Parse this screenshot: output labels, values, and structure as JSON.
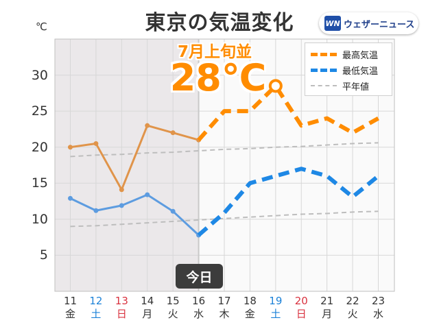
{
  "header": {
    "title": "東京の気温変化",
    "brand": "ウェザーニュース",
    "brand_mark": "WN"
  },
  "chart_data": {
    "type": "line",
    "unit_label": "℃",
    "ylim": [
      0,
      35
    ],
    "yticks": [
      5,
      10,
      15,
      20,
      25,
      30
    ],
    "grid": true,
    "categories": [
      "11",
      "12",
      "13",
      "14",
      "15",
      "16",
      "17",
      "18",
      "19",
      "20",
      "21",
      "22",
      "23"
    ],
    "weekdays": [
      "金",
      "土",
      "日",
      "月",
      "火",
      "水",
      "木",
      "金",
      "土",
      "日",
      "月",
      "火",
      "水"
    ],
    "day_types": [
      "weekday",
      "sat",
      "sun",
      "weekday",
      "weekday",
      "weekday",
      "weekday",
      "weekday",
      "sat",
      "sun",
      "weekday",
      "weekday",
      "weekday"
    ],
    "today_index": 5,
    "today_label": "今日",
    "series": [
      {
        "name": "最高気温",
        "color": "#ff8c00",
        "observed_color": "#e0944a",
        "values": [
          20.0,
          20.5,
          14.1,
          23.0,
          22.0,
          21.0,
          25.0,
          25.0,
          28.5,
          23.0,
          24.0,
          22.0,
          24.0
        ]
      },
      {
        "name": "最低気温",
        "color": "#1e88e5",
        "observed_color": "#5d9ce0",
        "values": [
          12.9,
          11.2,
          11.9,
          13.4,
          11.1,
          7.8,
          10.9,
          15.0,
          16.0,
          17.0,
          16.0,
          13.1,
          16.0
        ]
      },
      {
        "name": "平年値",
        "color": "#bdbdbd",
        "values_high": [
          18.7,
          18.9,
          19.0,
          19.2,
          19.3,
          19.5,
          19.7,
          19.8,
          20.0,
          20.1,
          20.3,
          20.5,
          20.6
        ],
        "values_low": [
          9.0,
          9.1,
          9.3,
          9.5,
          9.7,
          9.9,
          10.1,
          10.3,
          10.5,
          10.7,
          10.8,
          11.0,
          11.1
        ]
      }
    ],
    "annotation": {
      "line1": "7月上旬並",
      "line2": "28℃",
      "index": 8
    },
    "legend_position": "top-right"
  }
}
